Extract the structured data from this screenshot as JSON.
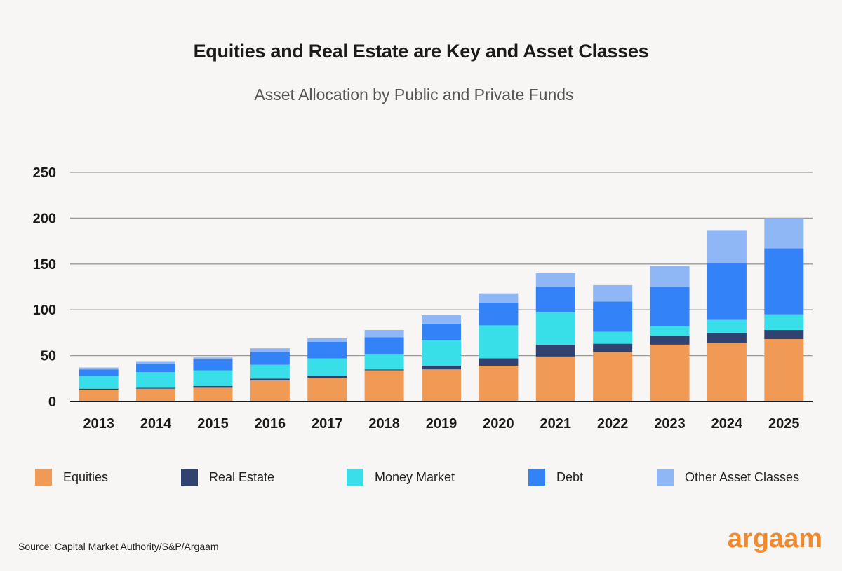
{
  "chart_data": {
    "type": "bar",
    "stacked": true,
    "title": "Equities and Real Estate are Key and Asset Classes",
    "subtitle": "Asset Allocation by Public and Private Funds",
    "xlabel": "",
    "ylabel": "",
    "ylim": [
      0,
      250
    ],
    "yticks": [
      0,
      50,
      100,
      150,
      200,
      250
    ],
    "grid": true,
    "legend_position": "bottom",
    "categories": [
      "2013",
      "2014",
      "2015",
      "2016",
      "2017",
      "2018",
      "2019",
      "2020",
      "2021",
      "2022",
      "2023",
      "2024",
      "2025"
    ],
    "series": [
      {
        "name": "Equities",
        "color": "#f09a56",
        "values": [
          13,
          14,
          15,
          23,
          26,
          34,
          35,
          39,
          49,
          54,
          62,
          64,
          68
        ]
      },
      {
        "name": "Real Estate",
        "color": "#2f4270",
        "values": [
          1,
          1,
          2,
          2,
          2,
          1,
          4,
          8,
          13,
          9,
          10,
          11,
          10
        ]
      },
      {
        "name": "Money Market",
        "color": "#38dfe8",
        "values": [
          14,
          17,
          17,
          15,
          19,
          17,
          28,
          36,
          35,
          13,
          10,
          14,
          17
        ]
      },
      {
        "name": "Debt",
        "color": "#3382f7",
        "values": [
          7,
          9,
          12,
          14,
          18,
          18,
          18,
          25,
          28,
          33,
          43,
          62,
          72
        ]
      },
      {
        "name": "Other Asset Classes",
        "color": "#8fb6f5",
        "values": [
          2,
          3,
          2,
          4,
          4,
          8,
          9,
          10,
          15,
          18,
          23,
          36,
          33
        ]
      }
    ]
  },
  "footer": {
    "source": "Source: Capital Market Authority/S&P/Argaam",
    "logo_text": "argaam"
  }
}
